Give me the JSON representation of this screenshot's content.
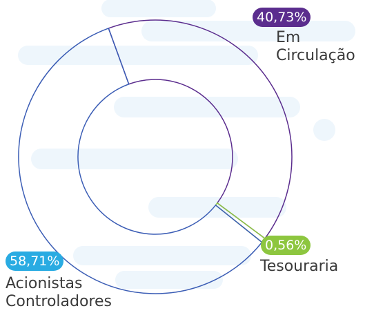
{
  "chart_data": {
    "type": "donut",
    "categories": [
      "Em Circulação",
      "Tesouraria",
      "Acionistas Controladores"
    ],
    "values": [
      40.73,
      0.56,
      58.71
    ],
    "value_labels": [
      "40,73%",
      "0,56%",
      "58,71%"
    ],
    "colors": [
      "#5b2d8e",
      "#8dc63f",
      "#29abe2"
    ],
    "stroke_colors": [
      "#5b2d8e",
      "#8dc63f",
      "#3b5db5"
    ]
  }
}
